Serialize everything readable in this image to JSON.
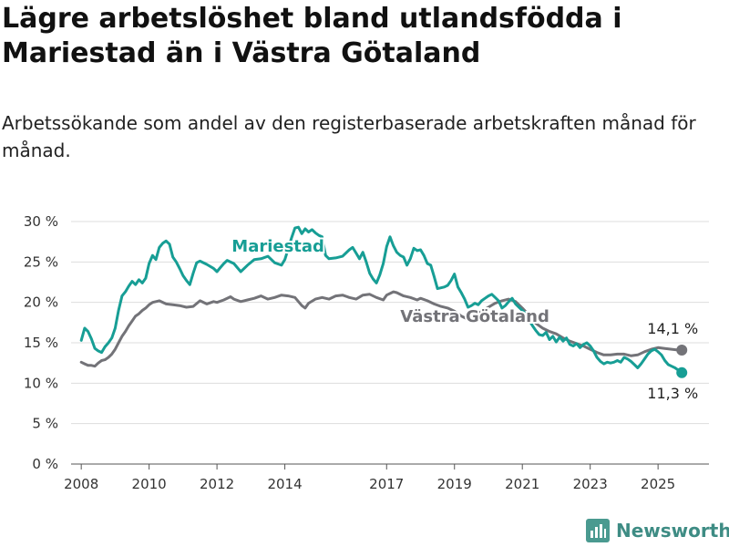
{
  "title": "Lägre arbetslöshet bland utlandsfödda i Mariestad än i Västra Götaland",
  "subtitle": "Arbetssökande som andel av den registerbaserade arbetskraften månad för månad.",
  "logo": {
    "text": "Newsworthy",
    "icon": "bar-chart-logo-icon"
  },
  "colors": {
    "mariestad": "#179e95",
    "vastra": "#737378",
    "grid": "#dddddd",
    "axis": "#555555"
  },
  "chart_data": {
    "type": "line",
    "title": "Lägre arbetslöshet bland utlandsfödda i Mariestad än i Västra Götaland",
    "subtitle": "Arbetssökande som andel av den registerbaserade arbetskraften månad för månad.",
    "xlabel": "",
    "ylabel": "",
    "xlim": [
      2007.7,
      2026.5
    ],
    "ylim": [
      0,
      30
    ],
    "y_ticks": [
      0,
      5,
      10,
      15,
      20,
      25,
      30
    ],
    "y_tick_labels": [
      "0 %",
      "5 %",
      "10 %",
      "15 %",
      "20 %",
      "25 %",
      "30 %"
    ],
    "x_ticks": [
      2008,
      2010,
      2012,
      2014,
      2017,
      2019,
      2021,
      2023,
      2025
    ],
    "x_tick_labels": [
      "2008",
      "2010",
      "2012",
      "2014",
      "2017",
      "2019",
      "2021",
      "2023",
      "2025"
    ],
    "grid": true,
    "legend": "none",
    "series": [
      {
        "name": "Mariestad",
        "end_label": "11,3 %",
        "points": [
          [
            2008.0,
            15.3
          ],
          [
            2008.1,
            16.8
          ],
          [
            2008.2,
            16.4
          ],
          [
            2008.3,
            15.5
          ],
          [
            2008.4,
            14.3
          ],
          [
            2008.5,
            14.0
          ],
          [
            2008.6,
            13.8
          ],
          [
            2008.7,
            14.5
          ],
          [
            2008.8,
            15.0
          ],
          [
            2008.9,
            15.6
          ],
          [
            2009.0,
            16.8
          ],
          [
            2009.1,
            19.0
          ],
          [
            2009.2,
            20.8
          ],
          [
            2009.3,
            21.3
          ],
          [
            2009.4,
            22.0
          ],
          [
            2009.5,
            22.6
          ],
          [
            2009.6,
            22.2
          ],
          [
            2009.7,
            22.8
          ],
          [
            2009.8,
            22.4
          ],
          [
            2009.9,
            23.0
          ],
          [
            2010.0,
            24.8
          ],
          [
            2010.1,
            25.8
          ],
          [
            2010.2,
            25.3
          ],
          [
            2010.3,
            26.8
          ],
          [
            2010.4,
            27.3
          ],
          [
            2010.5,
            27.6
          ],
          [
            2010.6,
            27.2
          ],
          [
            2010.7,
            25.6
          ],
          [
            2010.8,
            25.0
          ],
          [
            2010.9,
            24.2
          ],
          [
            2011.0,
            23.3
          ],
          [
            2011.1,
            22.7
          ],
          [
            2011.2,
            22.2
          ],
          [
            2011.3,
            23.6
          ],
          [
            2011.4,
            24.9
          ],
          [
            2011.5,
            25.1
          ],
          [
            2011.7,
            24.7
          ],
          [
            2011.9,
            24.2
          ],
          [
            2012.0,
            23.8
          ],
          [
            2012.1,
            24.3
          ],
          [
            2012.2,
            24.8
          ],
          [
            2012.3,
            25.2
          ],
          [
            2012.5,
            24.8
          ],
          [
            2012.7,
            23.8
          ],
          [
            2012.9,
            24.6
          ],
          [
            2013.1,
            25.3
          ],
          [
            2013.3,
            25.4
          ],
          [
            2013.5,
            25.7
          ],
          [
            2013.7,
            24.9
          ],
          [
            2013.9,
            24.6
          ],
          [
            2014.0,
            25.3
          ],
          [
            2014.1,
            26.6
          ],
          [
            2014.2,
            28.0
          ],
          [
            2014.3,
            29.2
          ],
          [
            2014.4,
            29.3
          ],
          [
            2014.5,
            28.5
          ],
          [
            2014.6,
            29.1
          ],
          [
            2014.7,
            28.7
          ],
          [
            2014.8,
            29.0
          ],
          [
            2014.9,
            28.6
          ],
          [
            2015.0,
            28.3
          ],
          [
            2015.1,
            28.1
          ],
          [
            2015.2,
            25.8
          ],
          [
            2015.3,
            25.4
          ],
          [
            2015.5,
            25.5
          ],
          [
            2015.7,
            25.7
          ],
          [
            2015.9,
            26.5
          ],
          [
            2016.0,
            26.8
          ],
          [
            2016.1,
            26.1
          ],
          [
            2016.2,
            25.4
          ],
          [
            2016.3,
            26.2
          ],
          [
            2016.4,
            25.0
          ],
          [
            2016.5,
            23.6
          ],
          [
            2016.6,
            22.9
          ],
          [
            2016.7,
            22.4
          ],
          [
            2016.8,
            23.4
          ],
          [
            2016.9,
            24.8
          ],
          [
            2017.0,
            26.9
          ],
          [
            2017.1,
            28.1
          ],
          [
            2017.2,
            27.0
          ],
          [
            2017.3,
            26.2
          ],
          [
            2017.4,
            25.8
          ],
          [
            2017.5,
            25.6
          ],
          [
            2017.6,
            24.6
          ],
          [
            2017.7,
            25.4
          ],
          [
            2017.8,
            26.7
          ],
          [
            2017.9,
            26.4
          ],
          [
            2018.0,
            26.5
          ],
          [
            2018.1,
            25.8
          ],
          [
            2018.2,
            24.8
          ],
          [
            2018.3,
            24.6
          ],
          [
            2018.4,
            23.2
          ],
          [
            2018.5,
            21.7
          ],
          [
            2018.6,
            21.8
          ],
          [
            2018.7,
            21.9
          ],
          [
            2018.8,
            22.1
          ],
          [
            2018.9,
            22.7
          ],
          [
            2019.0,
            23.5
          ],
          [
            2019.1,
            21.9
          ],
          [
            2019.2,
            21.2
          ],
          [
            2019.3,
            20.4
          ],
          [
            2019.4,
            19.4
          ],
          [
            2019.5,
            19.6
          ],
          [
            2019.6,
            19.9
          ],
          [
            2019.7,
            19.7
          ],
          [
            2019.8,
            20.2
          ],
          [
            2019.9,
            20.5
          ],
          [
            2020.0,
            20.8
          ],
          [
            2020.1,
            21.0
          ],
          [
            2020.2,
            20.6
          ],
          [
            2020.3,
            20.2
          ],
          [
            2020.4,
            19.3
          ],
          [
            2020.5,
            19.6
          ],
          [
            2020.6,
            20.1
          ],
          [
            2020.7,
            20.5
          ],
          [
            2020.8,
            19.8
          ],
          [
            2020.9,
            19.4
          ],
          [
            2021.0,
            19.0
          ],
          [
            2021.1,
            18.6
          ],
          [
            2021.2,
            17.8
          ],
          [
            2021.3,
            17.1
          ],
          [
            2021.4,
            16.5
          ],
          [
            2021.5,
            16.0
          ],
          [
            2021.6,
            15.9
          ],
          [
            2021.7,
            16.3
          ],
          [
            2021.8,
            15.4
          ],
          [
            2021.9,
            15.8
          ],
          [
            2022.0,
            15.1
          ],
          [
            2022.1,
            15.7
          ],
          [
            2022.2,
            15.2
          ],
          [
            2022.3,
            15.6
          ],
          [
            2022.4,
            14.8
          ],
          [
            2022.5,
            14.6
          ],
          [
            2022.6,
            14.9
          ],
          [
            2022.7,
            14.4
          ],
          [
            2022.8,
            14.8
          ],
          [
            2022.9,
            15.0
          ],
          [
            2023.0,
            14.6
          ],
          [
            2023.1,
            14.0
          ],
          [
            2023.2,
            13.2
          ],
          [
            2023.3,
            12.7
          ],
          [
            2023.4,
            12.4
          ],
          [
            2023.5,
            12.6
          ],
          [
            2023.6,
            12.5
          ],
          [
            2023.7,
            12.6
          ],
          [
            2023.8,
            12.8
          ],
          [
            2023.9,
            12.6
          ],
          [
            2024.0,
            13.2
          ],
          [
            2024.1,
            13.0
          ],
          [
            2024.2,
            12.7
          ],
          [
            2024.3,
            12.3
          ],
          [
            2024.4,
            11.9
          ],
          [
            2024.5,
            12.4
          ],
          [
            2024.6,
            13.0
          ],
          [
            2024.7,
            13.6
          ],
          [
            2024.8,
            14.0
          ],
          [
            2024.9,
            14.2
          ],
          [
            2025.0,
            13.9
          ],
          [
            2025.1,
            13.5
          ],
          [
            2025.2,
            12.8
          ],
          [
            2025.3,
            12.3
          ],
          [
            2025.4,
            12.1
          ],
          [
            2025.5,
            11.9
          ],
          [
            2025.6,
            11.6
          ],
          [
            2025.7,
            11.3
          ]
        ]
      },
      {
        "name": "Västra Götaland",
        "end_label": "14,1 %",
        "points": [
          [
            2008.0,
            12.6
          ],
          [
            2008.1,
            12.4
          ],
          [
            2008.2,
            12.2
          ],
          [
            2008.3,
            12.2
          ],
          [
            2008.4,
            12.1
          ],
          [
            2008.5,
            12.5
          ],
          [
            2008.6,
            12.8
          ],
          [
            2008.7,
            12.9
          ],
          [
            2008.8,
            13.2
          ],
          [
            2008.9,
            13.6
          ],
          [
            2009.0,
            14.2
          ],
          [
            2009.1,
            15.0
          ],
          [
            2009.2,
            15.8
          ],
          [
            2009.3,
            16.4
          ],
          [
            2009.4,
            17.1
          ],
          [
            2009.5,
            17.7
          ],
          [
            2009.6,
            18.3
          ],
          [
            2009.7,
            18.6
          ],
          [
            2009.8,
            19.0
          ],
          [
            2009.9,
            19.3
          ],
          [
            2010.0,
            19.7
          ],
          [
            2010.1,
            20.0
          ],
          [
            2010.2,
            20.1
          ],
          [
            2010.3,
            20.2
          ],
          [
            2010.5,
            19.8
          ],
          [
            2010.7,
            19.7
          ],
          [
            2010.9,
            19.6
          ],
          [
            2011.1,
            19.4
          ],
          [
            2011.3,
            19.5
          ],
          [
            2011.5,
            20.2
          ],
          [
            2011.7,
            19.8
          ],
          [
            2011.9,
            20.1
          ],
          [
            2012.0,
            20.0
          ],
          [
            2012.2,
            20.3
          ],
          [
            2012.4,
            20.7
          ],
          [
            2012.5,
            20.4
          ],
          [
            2012.7,
            20.1
          ],
          [
            2012.9,
            20.3
          ],
          [
            2013.1,
            20.5
          ],
          [
            2013.3,
            20.8
          ],
          [
            2013.5,
            20.4
          ],
          [
            2013.7,
            20.6
          ],
          [
            2013.9,
            20.9
          ],
          [
            2014.1,
            20.8
          ],
          [
            2014.3,
            20.6
          ],
          [
            2014.5,
            19.6
          ],
          [
            2014.6,
            19.3
          ],
          [
            2014.7,
            19.9
          ],
          [
            2014.9,
            20.4
          ],
          [
            2015.1,
            20.6
          ],
          [
            2015.3,
            20.4
          ],
          [
            2015.5,
            20.8
          ],
          [
            2015.7,
            20.9
          ],
          [
            2015.9,
            20.6
          ],
          [
            2016.1,
            20.4
          ],
          [
            2016.3,
            20.9
          ],
          [
            2016.5,
            21.0
          ],
          [
            2016.7,
            20.6
          ],
          [
            2016.9,
            20.3
          ],
          [
            2017.0,
            20.9
          ],
          [
            2017.2,
            21.3
          ],
          [
            2017.3,
            21.2
          ],
          [
            2017.5,
            20.8
          ],
          [
            2017.7,
            20.6
          ],
          [
            2017.9,
            20.3
          ],
          [
            2018.0,
            20.5
          ],
          [
            2018.2,
            20.2
          ],
          [
            2018.4,
            19.8
          ],
          [
            2018.6,
            19.5
          ],
          [
            2018.8,
            19.3
          ],
          [
            2019.0,
            18.9
          ],
          [
            2019.2,
            18.3
          ],
          [
            2019.4,
            17.9
          ],
          [
            2019.6,
            18.2
          ],
          [
            2019.8,
            18.9
          ],
          [
            2020.0,
            19.4
          ],
          [
            2020.2,
            19.9
          ],
          [
            2020.4,
            20.2
          ],
          [
            2020.6,
            20.4
          ],
          [
            2020.8,
            20.1
          ],
          [
            2021.0,
            19.3
          ],
          [
            2021.2,
            18.4
          ],
          [
            2021.4,
            17.4
          ],
          [
            2021.6,
            16.8
          ],
          [
            2021.8,
            16.4
          ],
          [
            2022.0,
            16.1
          ],
          [
            2022.2,
            15.6
          ],
          [
            2022.4,
            15.2
          ],
          [
            2022.6,
            14.9
          ],
          [
            2022.8,
            14.6
          ],
          [
            2023.0,
            14.2
          ],
          [
            2023.2,
            13.8
          ],
          [
            2023.4,
            13.5
          ],
          [
            2023.6,
            13.5
          ],
          [
            2023.8,
            13.6
          ],
          [
            2024.0,
            13.6
          ],
          [
            2024.2,
            13.4
          ],
          [
            2024.4,
            13.5
          ],
          [
            2024.6,
            13.9
          ],
          [
            2024.8,
            14.2
          ],
          [
            2025.0,
            14.4
          ],
          [
            2025.2,
            14.3
          ],
          [
            2025.4,
            14.2
          ],
          [
            2025.6,
            14.1
          ],
          [
            2025.7,
            14.1
          ]
        ]
      }
    ]
  }
}
